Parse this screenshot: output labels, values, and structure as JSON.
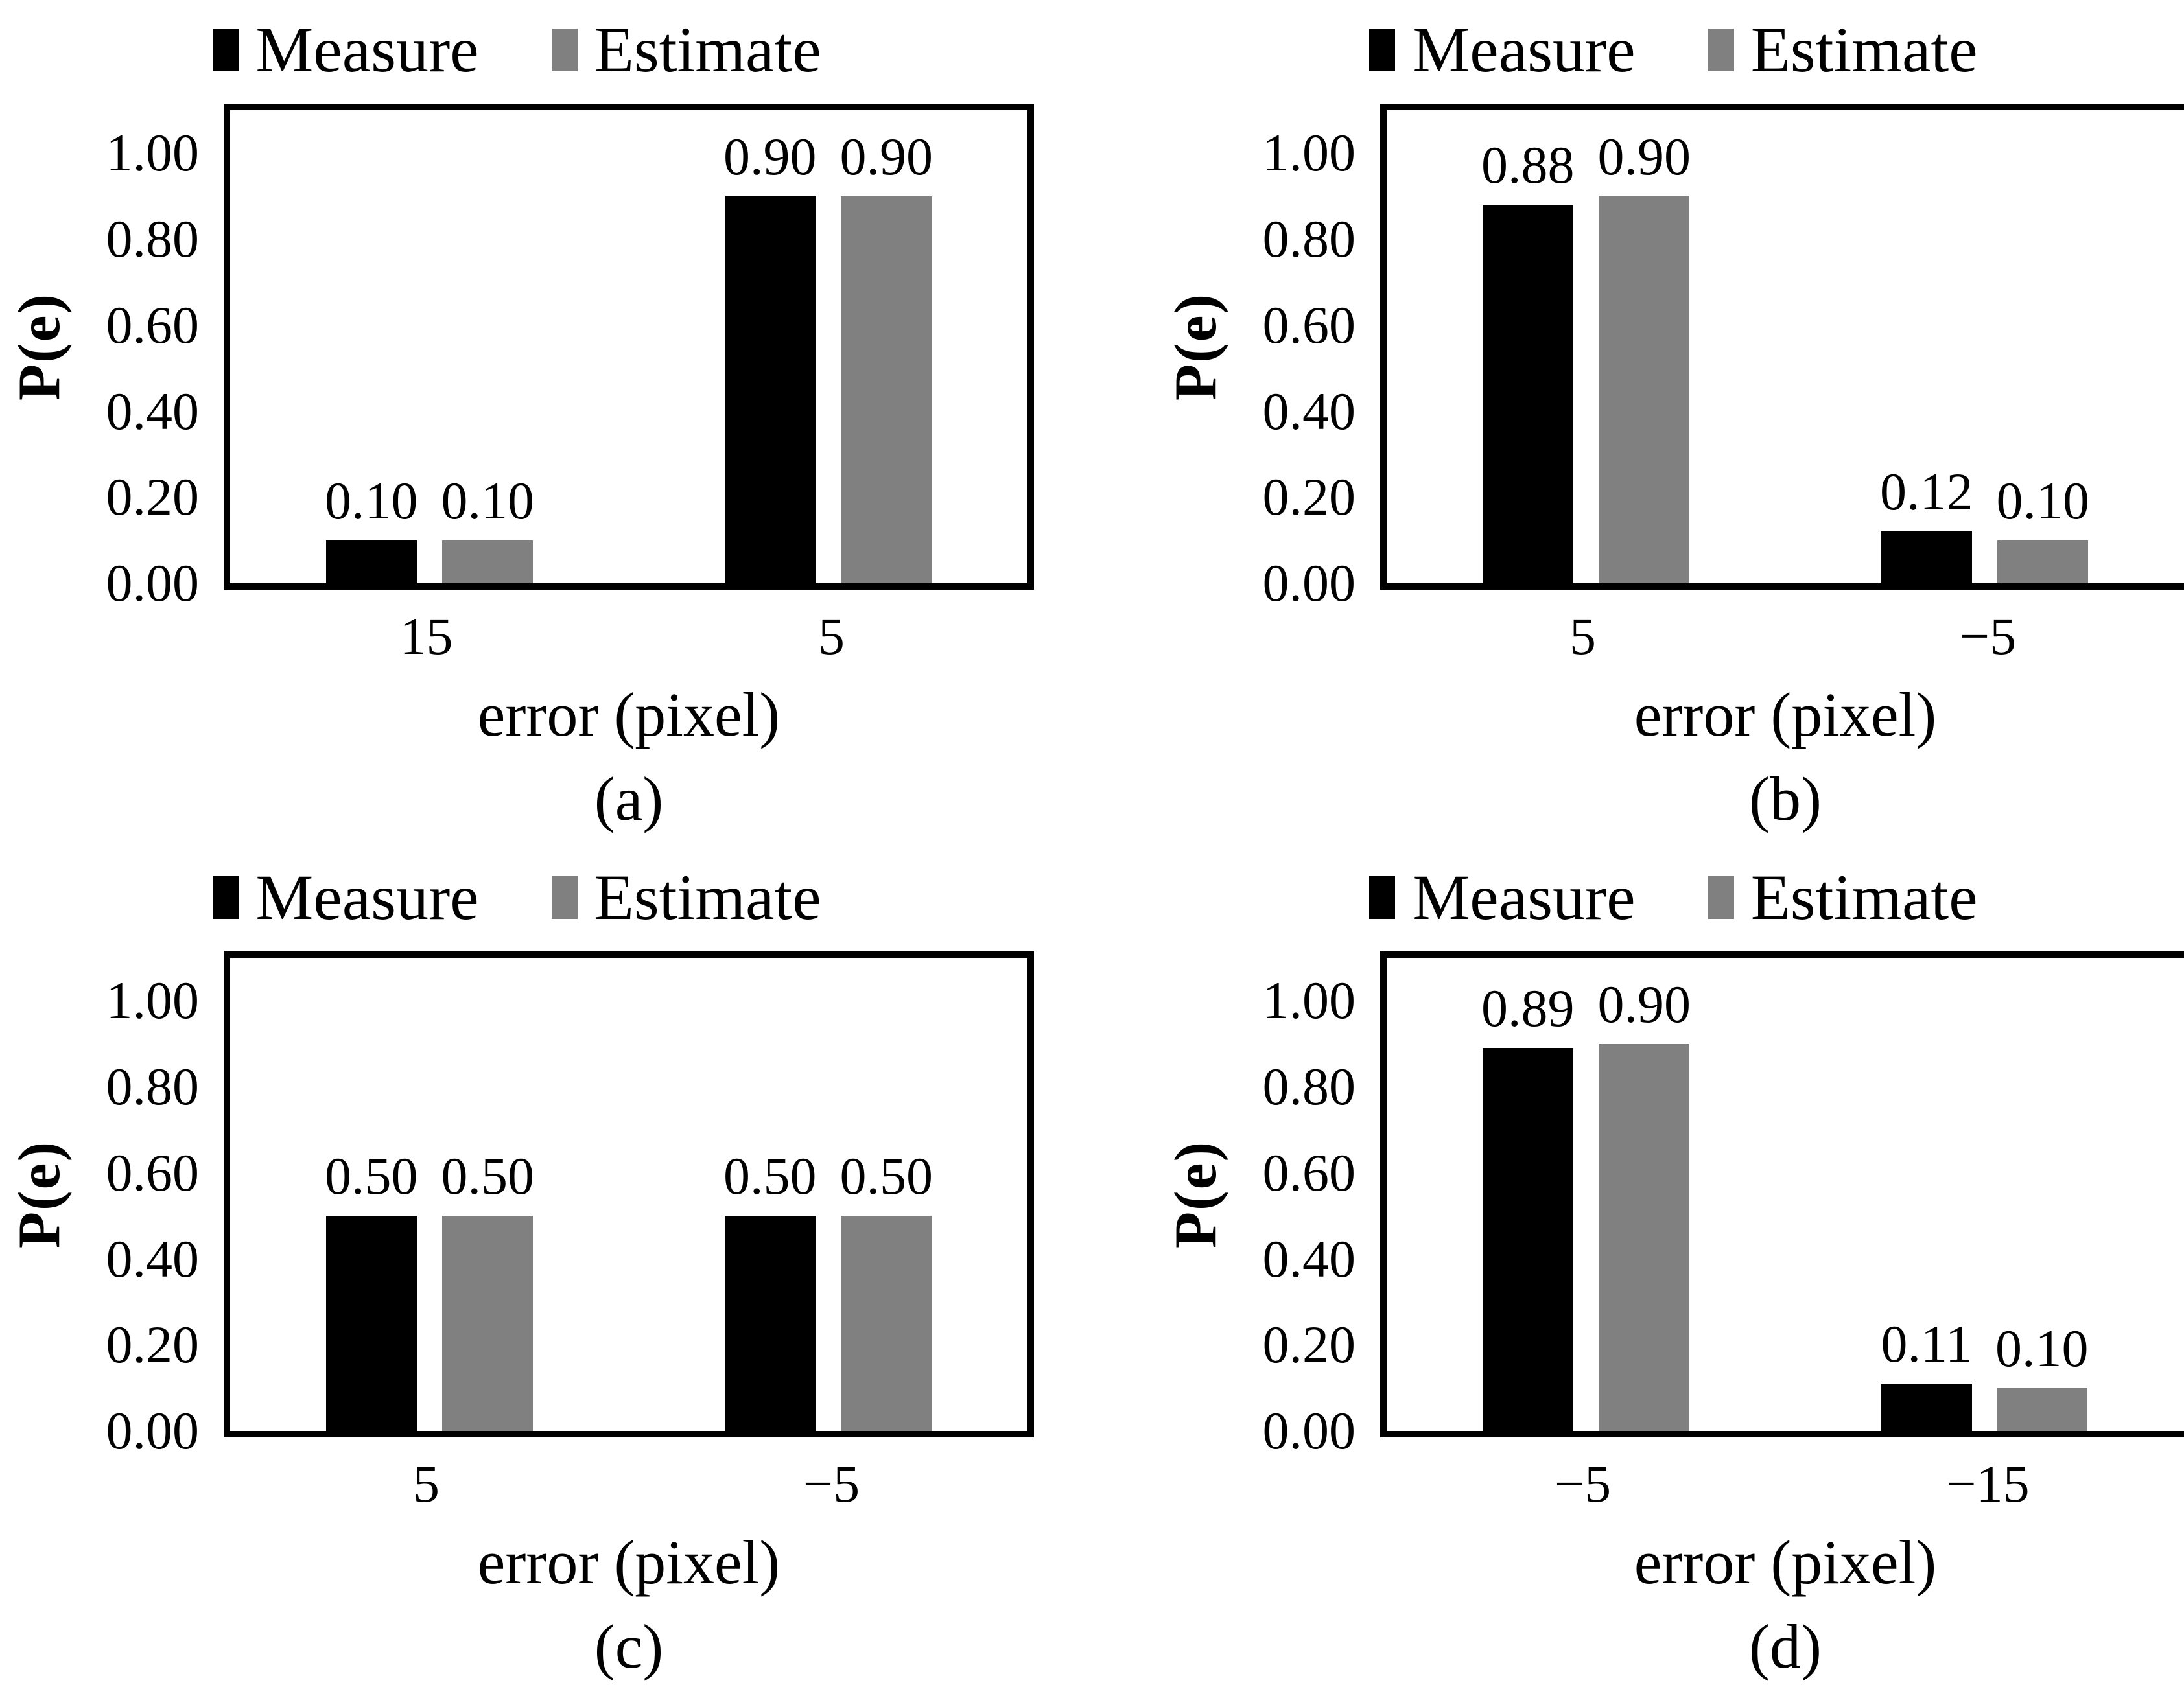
{
  "colors": {
    "measure": "#000000",
    "estimate": "#808080",
    "text": "#000000",
    "plot_border": "#000000",
    "background": "#ffffff"
  },
  "chart_data": [
    {
      "type": "bar",
      "caption": "(a)",
      "categories": [
        "15",
        "5"
      ],
      "series": [
        {
          "name": "Measure",
          "key": "measure",
          "values": [
            0.1,
            0.9
          ]
        },
        {
          "name": "Estimate",
          "key": "estimate",
          "values": [
            0.1,
            0.9
          ]
        }
      ],
      "data_labels": [
        [
          "0.10",
          "0.90"
        ],
        [
          "0.10",
          "0.90"
        ]
      ],
      "xlabel": "error (pixel)",
      "ylabel": "P(e)",
      "yticks": [
        "0.00",
        "0.20",
        "0.40",
        "0.60",
        "0.80",
        "1.00"
      ],
      "ytick_values": [
        0,
        0.2,
        0.4,
        0.6,
        0.8,
        1.0
      ],
      "ylim": [
        0,
        1.1
      ],
      "grid": "off",
      "legend_position": "top"
    },
    {
      "type": "bar",
      "caption": "(b)",
      "categories": [
        "5",
        "−5"
      ],
      "series": [
        {
          "name": "Measure",
          "key": "measure",
          "values": [
            0.88,
            0.12
          ]
        },
        {
          "name": "Estimate",
          "key": "estimate",
          "values": [
            0.9,
            0.1
          ]
        }
      ],
      "data_labels": [
        [
          "0.88",
          "0.12"
        ],
        [
          "0.90",
          "0.10"
        ]
      ],
      "xlabel": "error (pixel)",
      "ylabel": "P(e)",
      "yticks": [
        "0.00",
        "0.20",
        "0.40",
        "0.60",
        "0.80",
        "1.00"
      ],
      "ytick_values": [
        0,
        0.2,
        0.4,
        0.6,
        0.8,
        1.0
      ],
      "ylim": [
        0,
        1.1
      ],
      "grid": "off",
      "legend_position": "top"
    },
    {
      "type": "bar",
      "caption": "(c)",
      "categories": [
        "5",
        "−5"
      ],
      "series": [
        {
          "name": "Measure",
          "key": "measure",
          "values": [
            0.5,
            0.5
          ]
        },
        {
          "name": "Estimate",
          "key": "estimate",
          "values": [
            0.5,
            0.5
          ]
        }
      ],
      "data_labels": [
        [
          "0.50",
          "0.50"
        ],
        [
          "0.50",
          "0.50"
        ]
      ],
      "xlabel": "error (pixel)",
      "ylabel": "P(e)",
      "yticks": [
        "0.00",
        "0.20",
        "0.40",
        "0.60",
        "0.80",
        "1.00"
      ],
      "ytick_values": [
        0,
        0.2,
        0.4,
        0.6,
        0.8,
        1.0
      ],
      "ylim": [
        0,
        1.1
      ],
      "grid": "off",
      "legend_position": "top"
    },
    {
      "type": "bar",
      "caption": "(d)",
      "categories": [
        "−5",
        "−15"
      ],
      "series": [
        {
          "name": "Measure",
          "key": "measure",
          "values": [
            0.89,
            0.11
          ]
        },
        {
          "name": "Estimate",
          "key": "estimate",
          "values": [
            0.9,
            0.1
          ]
        }
      ],
      "data_labels": [
        [
          "0.89",
          "0.11"
        ],
        [
          "0.90",
          "0.10"
        ]
      ],
      "xlabel": "error (pixel)",
      "ylabel": "P(e)",
      "yticks": [
        "0.00",
        "0.20",
        "0.40",
        "0.60",
        "0.80",
        "1.00"
      ],
      "ytick_values": [
        0,
        0.2,
        0.4,
        0.6,
        0.8,
        1.0
      ],
      "ylim": [
        0,
        1.1
      ],
      "grid": "off",
      "legend_position": "top"
    }
  ]
}
